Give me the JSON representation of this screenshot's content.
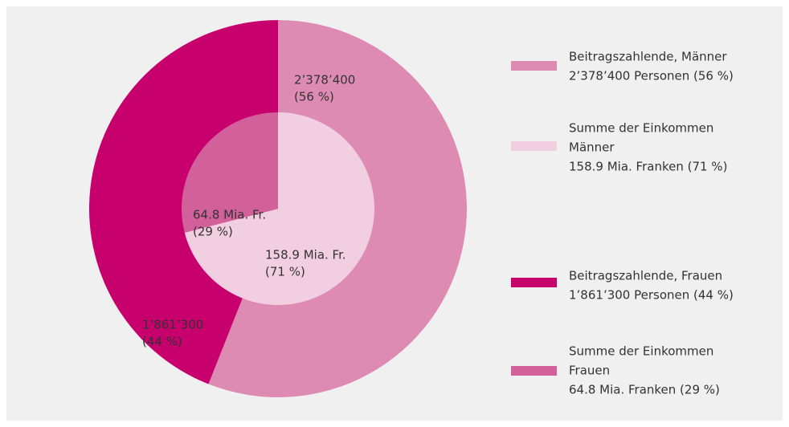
{
  "chart_data": [
    {
      "type": "donut",
      "series": [
        {
          "name_lines": [
            "Beitragszahlende, Männer"
          ],
          "legend_detail": "2’378’400 Personen (56 %)",
          "color": "#de8bb4",
          "value": 56,
          "value_label": "(56 %)",
          "count": 2378400,
          "count_label": "2’378’400"
        },
        {
          "name_lines": [
            "Beitragszahlende, Frauen"
          ],
          "legend_detail": "1’861’300 Personen (44 %)",
          "color": "#c8006e",
          "value": 44,
          "value_label": "(44 %)",
          "count": 1861300,
          "count_label": "1’861’300"
        }
      ]
    },
    {
      "type": "pie",
      "series": [
        {
          "name_lines": [
            "Summe der Einkommen",
            "Männer"
          ],
          "legend_detail": "158.9 Mia. Franken (71 %)",
          "color": "#f2cfe0",
          "value": 71,
          "value_label": "(71 %)",
          "count": 158.9,
          "count_label": "158.9 Mia. Fr."
        },
        {
          "name_lines": [
            "Summe der Einkommen",
            "Frauen"
          ],
          "legend_detail": "64.8 Mia. Franken (29 %)",
          "color": "#d2609a",
          "value": 29,
          "value_label": "(29 %)",
          "count": 64.8,
          "count_label": "64.8 Mia. Fr."
        }
      ]
    }
  ]
}
